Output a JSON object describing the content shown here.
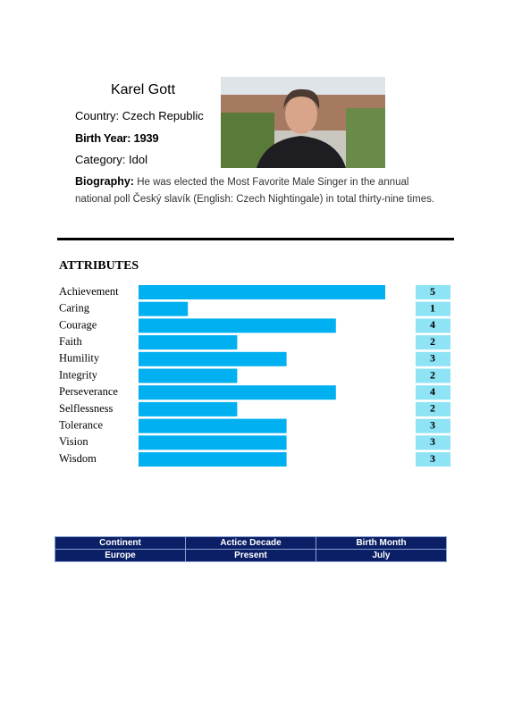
{
  "header": {
    "name": "Karel Gott",
    "fields": [
      {
        "label": "Country:",
        "value": "Czech Republic"
      },
      {
        "label": "Birth Year:",
        "value": "1939"
      },
      {
        "label": "Category:",
        "value": "Idol"
      }
    ],
    "biography_label": "Biography:",
    "biography": "He was elected the Most Favorite Male Singer in the annual national poll Český slavík (English: Czech Nightingale) in total thirty-nine times."
  },
  "chart_data": {
    "type": "bar",
    "orientation": "horizontal",
    "title": "ATTRIBUTES",
    "categories": [
      "Achievement",
      "Caring",
      "Courage",
      "Faith",
      "Humility",
      "Integrity",
      "Perseverance",
      "Selflessness",
      "Tolerance",
      "Vision",
      "Wisdom"
    ],
    "values": [
      5,
      1,
      4,
      2,
      3,
      2,
      4,
      2,
      3,
      3,
      3
    ],
    "color": "#00b0f0",
    "label_box_color": "#8ee3f5",
    "xlim": [
      0,
      5
    ]
  },
  "table": {
    "header": [
      "Continent",
      "Actice Decade",
      "Birth Month"
    ],
    "rows": [
      [
        "Europe",
        "Present",
        "July"
      ]
    ]
  }
}
